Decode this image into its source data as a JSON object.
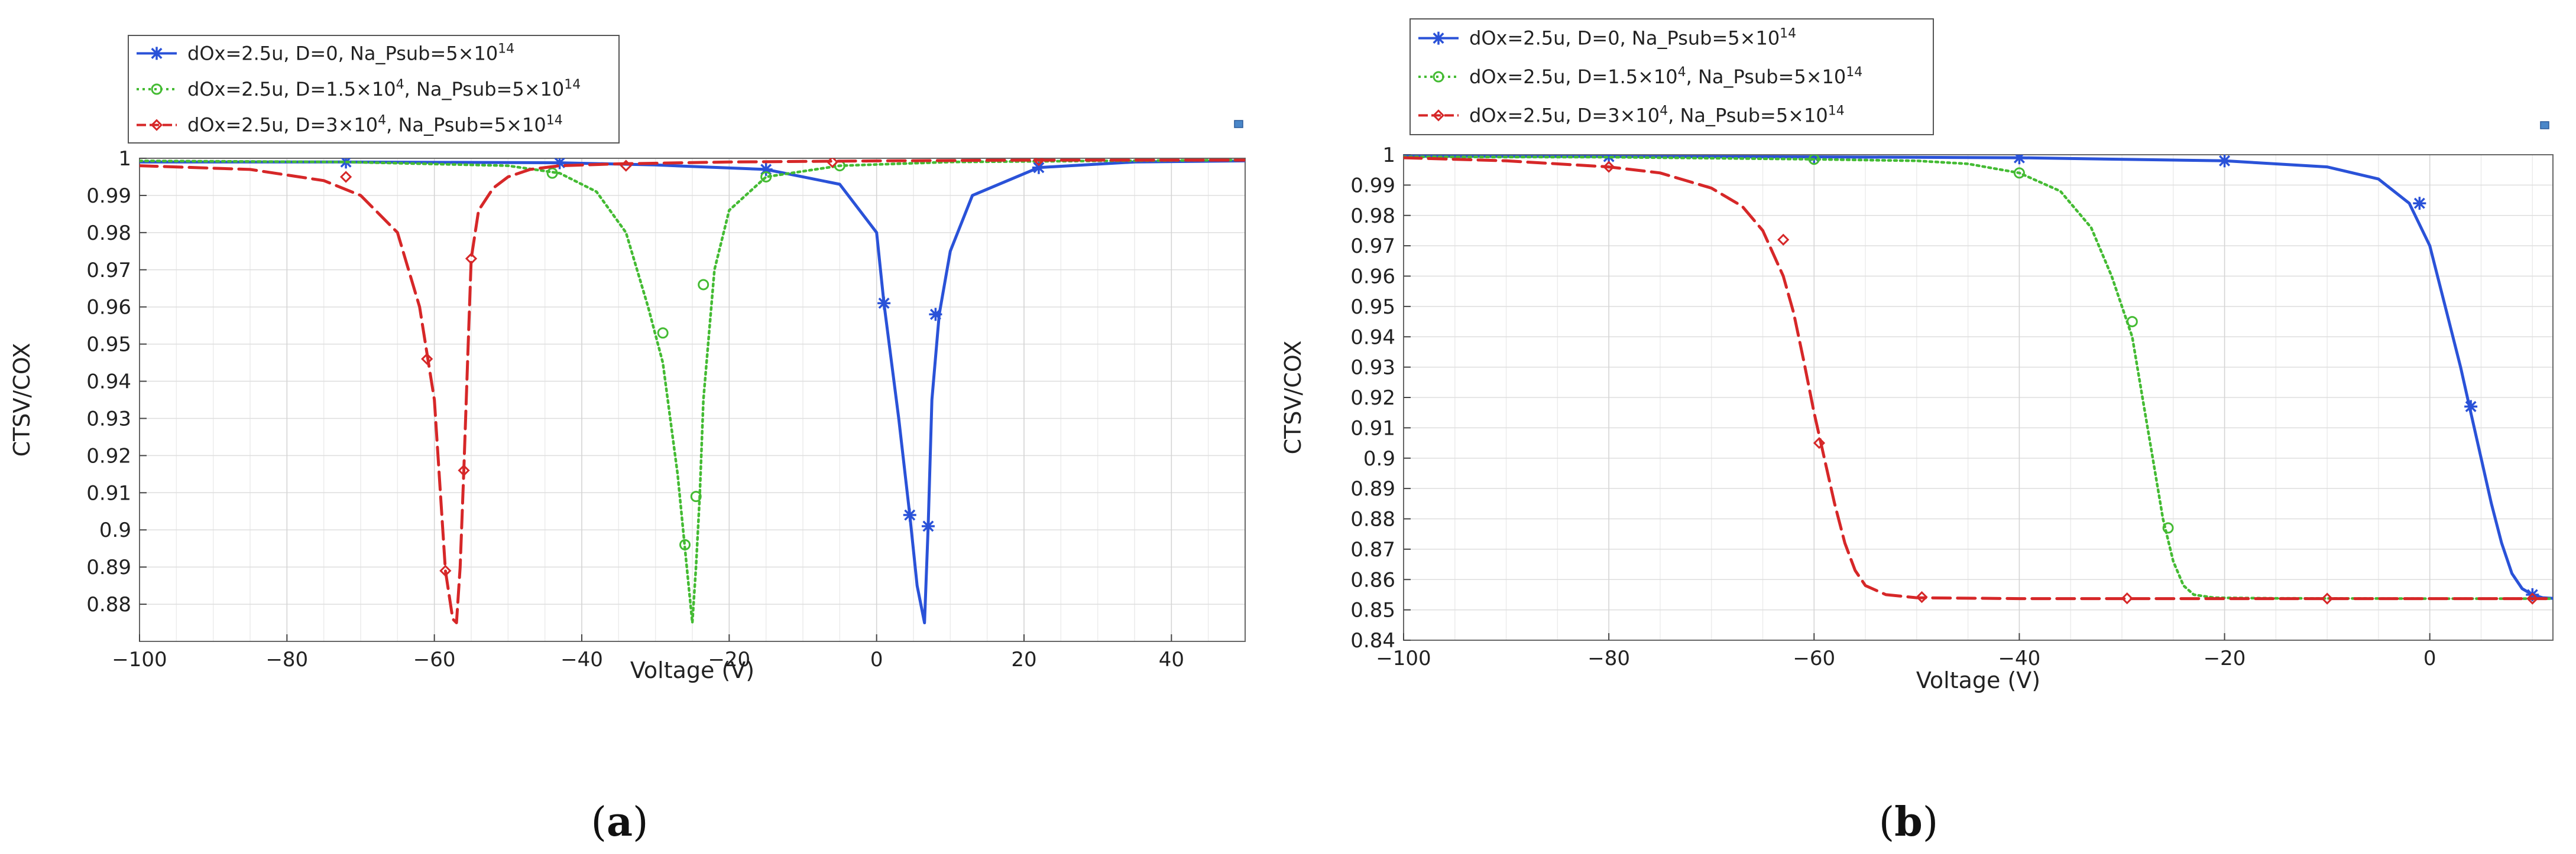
{
  "chart_data": [
    {
      "type": "line",
      "caption_open": "(",
      "caption_letter": "a",
      "caption_close": ")",
      "xlabel": "Voltage (V)",
      "ylabel": "CTSV/COX",
      "xlim": [
        -100,
        50
      ],
      "ylim": [
        0.87,
        1.0
      ],
      "xticks": [
        -100,
        -80,
        -60,
        -40,
        -20,
        0,
        20,
        40
      ],
      "yticks": [
        0.88,
        0.89,
        0.9,
        0.91,
        0.92,
        0.93,
        0.94,
        0.95,
        0.96,
        0.97,
        0.98,
        0.99,
        1
      ],
      "grid": true,
      "legend_position": "top-left, above plot",
      "series": [
        {
          "name": "dOx=2.5u, D=0, Na_Psub=5×10^14",
          "color": "#2a52d8",
          "dash": "solid",
          "marker": "star",
          "x": [
            -100,
            -72,
            -43,
            -30,
            -15,
            -5,
            0,
            1,
            3,
            4.5,
            5.5,
            6.5,
            7,
            7.5,
            8.5,
            10,
            13,
            22,
            35,
            50
          ],
          "y": [
            0.999,
            0.999,
            0.9988,
            0.9982,
            0.997,
            0.993,
            0.98,
            0.961,
            0.93,
            0.904,
            0.885,
            0.875,
            0.901,
            0.935,
            0.958,
            0.975,
            0.99,
            0.9975,
            0.999,
            0.9993
          ],
          "marker_x": [
            -72,
            -43,
            -15,
            1,
            4.5,
            7,
            8,
            22
          ],
          "marker_y": [
            0.999,
            0.9988,
            0.997,
            0.961,
            0.904,
            0.901,
            0.958,
            0.9975
          ]
        },
        {
          "name": "dOx=2.5u, D=1.5×10^4, Na_Psub=5×10^14",
          "color": "#44bb33",
          "dash": "dotted",
          "marker": "circle",
          "x": [
            -100,
            -72,
            -50,
            -43,
            -38,
            -34,
            -31,
            -29,
            -27,
            -26,
            -25,
            -24.5,
            -24,
            -23.5,
            -22,
            -20,
            -15,
            -5,
            10,
            30,
            50
          ],
          "y": [
            0.9993,
            0.999,
            0.998,
            0.996,
            0.991,
            0.98,
            0.96,
            0.945,
            0.915,
            0.895,
            0.875,
            0.89,
            0.909,
            0.935,
            0.97,
            0.986,
            0.995,
            0.998,
            0.999,
            0.9993,
            0.9995
          ],
          "marker_x": [
            -44,
            -29,
            -26,
            -24.5,
            -23.5,
            -15,
            -5
          ],
          "marker_y": [
            0.996,
            0.953,
            0.896,
            0.909,
            0.966,
            0.995,
            0.998
          ]
        },
        {
          "name": "dOx=2.5u, D=3×10^4, Na_Psub=5×10^14",
          "color": "#d62728",
          "dash": "dashed",
          "marker": "diamond",
          "x": [
            -100,
            -85,
            -75,
            -70,
            -65,
            -62,
            -60,
            -58.5,
            -57.5,
            -57,
            -56.5,
            -56,
            -55.5,
            -55,
            -54,
            -52,
            -50,
            -47,
            -43,
            -35,
            -20,
            0,
            20,
            50
          ],
          "y": [
            0.998,
            0.997,
            0.994,
            0.99,
            0.98,
            0.96,
            0.935,
            0.889,
            0.876,
            0.875,
            0.89,
            0.916,
            0.945,
            0.973,
            0.986,
            0.992,
            0.995,
            0.997,
            0.998,
            0.9985,
            0.999,
            0.9993,
            0.9995,
            0.9995
          ],
          "marker_x": [
            -72,
            -61,
            -58.5,
            -56,
            -55,
            -34,
            -6,
            22
          ],
          "marker_y": [
            0.995,
            0.946,
            0.889,
            0.916,
            0.973,
            0.998,
            0.999,
            0.9995
          ]
        }
      ]
    },
    {
      "type": "line",
      "caption_open": "(",
      "caption_letter": "b",
      "caption_close": ")",
      "xlabel": "Voltage (V)",
      "ylabel": "CTSV/COX",
      "xlim": [
        -100,
        12
      ],
      "ylim": [
        0.84,
        1.0
      ],
      "xticks": [
        -100,
        -80,
        -60,
        -40,
        -20,
        0
      ],
      "yticks": [
        0.84,
        0.85,
        0.86,
        0.87,
        0.88,
        0.89,
        0.9,
        0.91,
        0.92,
        0.93,
        0.94,
        0.95,
        0.96,
        0.97,
        0.98,
        0.99,
        1
      ],
      "grid": true,
      "legend_position": "top-left, above plot",
      "series": [
        {
          "name": "dOx=2.5u, D=0, Na_Psub=5×10^14",
          "color": "#2a52d8",
          "dash": "solid",
          "marker": "star",
          "x": [
            -100,
            -80,
            -60,
            -40,
            -20,
            -10,
            -5,
            -2,
            0,
            1.5,
            3,
            4,
            5,
            6,
            7,
            8,
            9,
            10,
            11,
            12
          ],
          "y": [
            0.9995,
            0.9994,
            0.9993,
            0.999,
            0.998,
            0.996,
            0.992,
            0.984,
            0.97,
            0.95,
            0.93,
            0.915,
            0.9,
            0.885,
            0.872,
            0.862,
            0.857,
            0.855,
            0.854,
            0.8538
          ],
          "marker_x": [
            -80,
            -60,
            -40,
            -20,
            -1,
            4,
            10
          ],
          "marker_y": [
            0.9994,
            0.9993,
            0.999,
            0.998,
            0.984,
            0.917,
            0.855
          ]
        },
        {
          "name": "dOx=2.5u, D=1.5×10^4, Na_Psub=5×10^14",
          "color": "#44bb33",
          "dash": "dotted",
          "marker": "circle",
          "x": [
            -100,
            -80,
            -60,
            -50,
            -45,
            -40,
            -36,
            -33,
            -31,
            -29,
            -28,
            -27,
            -26,
            -25,
            -24,
            -23,
            -21,
            -15,
            0,
            12
          ],
          "y": [
            0.9993,
            0.9992,
            0.9985,
            0.998,
            0.997,
            0.994,
            0.988,
            0.976,
            0.96,
            0.94,
            0.92,
            0.9,
            0.88,
            0.866,
            0.858,
            0.855,
            0.854,
            0.8538,
            0.8537,
            0.8537
          ],
          "marker_x": [
            -60,
            -40,
            -29,
            -25.5
          ],
          "marker_y": [
            0.9985,
            0.994,
            0.945,
            0.877
          ]
        },
        {
          "name": "dOx=2.5u, D=3×10^4, Na_Psub=5×10^14",
          "color": "#d62728",
          "dash": "dashed",
          "marker": "diamond",
          "x": [
            -100,
            -90,
            -80,
            -75,
            -70,
            -67,
            -65,
            -63,
            -62,
            -61,
            -60,
            -59,
            -58,
            -57,
            -56,
            -55,
            -53,
            -50,
            -40,
            -20,
            0,
            12
          ],
          "y": [
            0.999,
            0.998,
            0.996,
            0.994,
            0.989,
            0.983,
            0.975,
            0.96,
            0.948,
            0.932,
            0.915,
            0.9,
            0.885,
            0.872,
            0.863,
            0.858,
            0.855,
            0.854,
            0.8537,
            0.8537,
            0.8537,
            0.8537
          ],
          "marker_x": [
            -80,
            -63,
            -59.5,
            -49.5,
            -29.5,
            -10,
            10
          ],
          "marker_y": [
            0.996,
            0.972,
            0.905,
            0.8542,
            0.8538,
            0.8537,
            0.8537
          ]
        }
      ]
    }
  ]
}
